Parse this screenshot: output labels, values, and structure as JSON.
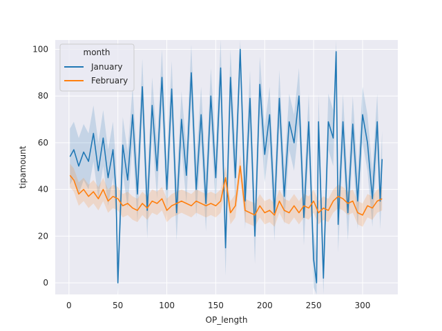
{
  "chart_data": {
    "type": "line",
    "title": "",
    "xlabel": "OP_length",
    "ylabel": "tipamount",
    "xlim": [
      -14,
      336
    ],
    "ylim": [
      -5,
      104
    ],
    "xticks": [
      0,
      50,
      100,
      150,
      200,
      250,
      300
    ],
    "yticks": [
      0,
      20,
      40,
      60,
      80,
      100
    ],
    "grid": true,
    "background": "#eaeaf2",
    "legend": {
      "title": "month",
      "placement": "top-left",
      "entries": [
        "January",
        "February"
      ]
    },
    "series": [
      {
        "name": "January",
        "color": "#1f77b4",
        "x": [
          1,
          5,
          10,
          15,
          20,
          25,
          30,
          35,
          40,
          45,
          48,
          50,
          55,
          60,
          65,
          70,
          75,
          80,
          85,
          90,
          95,
          100,
          105,
          110,
          115,
          120,
          125,
          130,
          135,
          140,
          145,
          150,
          155,
          160,
          165,
          170,
          175,
          180,
          185,
          190,
          195,
          200,
          205,
          210,
          215,
          220,
          225,
          230,
          235,
          240,
          245,
          250,
          253,
          255,
          260,
          265,
          270,
          273,
          275,
          280,
          285,
          290,
          295,
          300,
          305,
          310,
          315,
          318,
          320
        ],
        "y": [
          54,
          57,
          50,
          56,
          52,
          64,
          48,
          62,
          45,
          57,
          40,
          0,
          59,
          44,
          72,
          38,
          84,
          31,
          76,
          48,
          88,
          40,
          83,
          30,
          70,
          46,
          90,
          40,
          72,
          34,
          80,
          45,
          92,
          15,
          88,
          45,
          100,
          35,
          79,
          20,
          85,
          55,
          72,
          30,
          79,
          37,
          69,
          60,
          80,
          28,
          69,
          10,
          0,
          69,
          2,
          69,
          62,
          99,
          25,
          69,
          30,
          68,
          35,
          72,
          60,
          36,
          69,
          35,
          53
        ]
      },
      {
        "name": "February",
        "color": "#ff7f0e",
        "x": [
          1,
          5,
          10,
          15,
          20,
          25,
          30,
          35,
          40,
          45,
          50,
          55,
          60,
          65,
          70,
          75,
          80,
          85,
          90,
          95,
          100,
          105,
          110,
          115,
          120,
          125,
          130,
          135,
          140,
          145,
          150,
          155,
          160,
          165,
          170,
          175,
          180,
          185,
          190,
          195,
          200,
          205,
          210,
          215,
          220,
          225,
          230,
          235,
          240,
          245,
          250,
          255,
          260,
          265,
          270,
          275,
          280,
          285,
          290,
          295,
          300,
          305,
          310,
          315,
          320
        ],
        "y": [
          46,
          44,
          38,
          40,
          37,
          39,
          36,
          40,
          35,
          37,
          36,
          33,
          34,
          32,
          31,
          34,
          32,
          35,
          34,
          36,
          31,
          33,
          34,
          35,
          34,
          33,
          35,
          34,
          33,
          34,
          33,
          35,
          45,
          30,
          33,
          50,
          31,
          30,
          29,
          33,
          30,
          31,
          29,
          35,
          31,
          30,
          33,
          30,
          33,
          32,
          35,
          30,
          32,
          31,
          35,
          37,
          36,
          34,
          35,
          30,
          29,
          33,
          32,
          35,
          36
        ]
      }
    ]
  }
}
